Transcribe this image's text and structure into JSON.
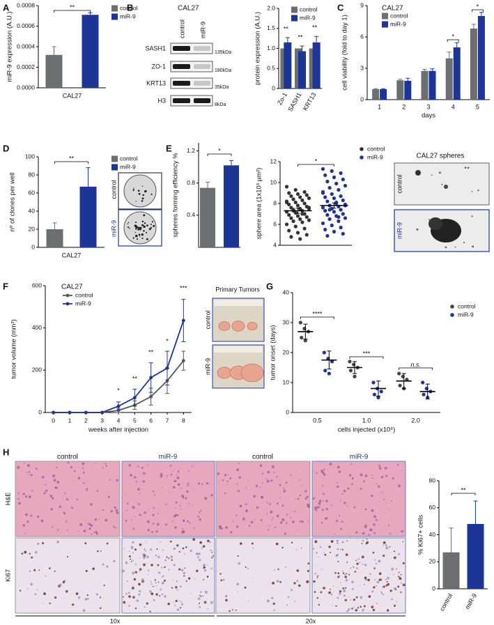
{
  "figure": {
    "panel_letters": [
      "A",
      "B",
      "C",
      "D",
      "E",
      "F",
      "G",
      "H"
    ],
    "blot": {
      "title": "CAL27",
      "lanes": [
        "control",
        "miR-9"
      ],
      "rows": [
        "SASH1",
        "ZO-1",
        "KRT13",
        "H3"
      ],
      "sizes": [
        "135kDa",
        "180kDa",
        "35kDa",
        "8kDa"
      ]
    },
    "clone_images": {
      "labels": [
        "control",
        "miR-9"
      ]
    },
    "sphere_images": {
      "title": "CAL27 spheres",
      "labels": [
        "control",
        "miR-9"
      ]
    },
    "tumor_images": {
      "title": "Primary Tumors",
      "labels": [
        "control",
        "miR-9"
      ]
    },
    "histology": {
      "columns": [
        "control",
        "miR-9",
        "control",
        "miR-9"
      ],
      "rows": [
        "H&E",
        "Ki67"
      ],
      "magnifications": [
        "10x",
        "20x"
      ]
    }
  },
  "chart_data": [
    {
      "type": "bar",
      "y_label": "miR-9 expression (A.U.)",
      "categories": [
        "CAL27"
      ],
      "series": [
        {
          "name": "control",
          "color": "#6d6e70",
          "values": [
            0.00032
          ],
          "errors": [
            8e-05
          ]
        },
        {
          "name": "miR-9",
          "color": "#1c3596",
          "values": [
            0.00071
          ],
          "errors": [
            2e-05
          ]
        }
      ],
      "ylim": [
        0,
        0.0008
      ],
      "yticks": [
        {
          "value": 0,
          "label": "0.0000"
        },
        0.0002,
        0.0004,
        0.0006,
        0.0008
      ],
      "annotations": [
        "**"
      ],
      "legend": "top-right"
    },
    {
      "type": "bar",
      "y_label": "protein expression (A.U.)",
      "categories": [
        "Zo-1",
        "SASH1",
        "KRT13"
      ],
      "series": [
        {
          "name": "control",
          "color": "#6d6e70",
          "values": [
            1,
            1,
            1
          ]
        },
        {
          "name": "miR-9",
          "color": "#1c3596",
          "values": [
            1.15,
            0.93,
            1.15
          ],
          "errors": [
            0.12,
            0.13,
            0.15
          ]
        }
      ],
      "ylim": [
        0,
        2
      ],
      "yticks": [
        0,
        0.5,
        {
          "value": 1,
          "label": "1.0"
        },
        1.5,
        {
          "value": 2,
          "label": "2.0"
        }
      ],
      "annotations": [
        "**",
        "**",
        "**"
      ],
      "legend": "top-right"
    },
    {
      "type": "bar",
      "title": "CAL27",
      "x_label": "days",
      "y_label": "cell viability (fold to day 1)",
      "categories": [
        "1",
        "2",
        "3",
        "4",
        "5"
      ],
      "series": [
        {
          "name": "control",
          "color": "#6d6e70",
          "values": [
            1,
            1.85,
            2.75,
            3.95,
            6.8
          ],
          "errors": [
            0.05,
            0.1,
            0.15,
            0.6,
            0.4
          ]
        },
        {
          "name": "miR-9",
          "color": "#1c3596",
          "values": [
            1,
            1.8,
            2.75,
            5,
            8
          ],
          "errors": [
            0.05,
            0.25,
            0.2,
            0.45,
            0.35
          ]
        }
      ],
      "ylim": [
        0,
        9
      ],
      "yticks": [
        0,
        3,
        6,
        9
      ],
      "annotations": [
        "*",
        "*"
      ],
      "legend": "top-left"
    },
    {
      "type": "bar",
      "y_label": "nº of clones per well",
      "categories": [
        "CAL27"
      ],
      "series": [
        {
          "name": "control",
          "color": "#6d6e70",
          "values": [
            20
          ],
          "errors": [
            7
          ]
        },
        {
          "name": "miR-9",
          "color": "#1c3596",
          "values": [
            67
          ],
          "errors": [
            21
          ]
        }
      ],
      "ylim": [
        0,
        100
      ],
      "yticks": [
        0,
        20,
        40,
        60,
        80,
        100
      ],
      "annotations": [
        "**"
      ],
      "legend": "top-right"
    },
    {
      "type": "bar",
      "y_label": "spheres forming efficiency %",
      "categories": [
        null
      ],
      "series": [
        {
          "color": "#6d6e70",
          "values": [
            0.74
          ],
          "errors": [
            0.07
          ]
        },
        {
          "color": "#1c3596",
          "values": [
            1.02
          ],
          "errors": [
            0.06
          ]
        }
      ],
      "ylim": [
        0,
        1.3
      ],
      "yticks": [
        0.4,
        0.8,
        1.2
      ],
      "annotations": [
        "*"
      ]
    },
    {
      "type": "dot",
      "y_label": "sphere area (1x10³ µm²)",
      "categories": [
        null
      ],
      "series": [
        {
          "name": "control",
          "color": "#333333",
          "values": [
            [
              9.6,
              9.3,
              9.1,
              9.0,
              8.9,
              8.8,
              8.7,
              8.6,
              8.5,
              8.4,
              8.3,
              8.2,
              8.1,
              8.0,
              7.9,
              7.8,
              7.7,
              7.6,
              7.5,
              7.5,
              7.4,
              7.3,
              7.2,
              7.1,
              7.0,
              6.9,
              6.8,
              6.7,
              6.6,
              6.5,
              6.4,
              6.3,
              6.2,
              6.0,
              5.8,
              5.6,
              5.4,
              5.2,
              5.0,
              4.8,
              4.6,
              7.6,
              7.3,
              7.0,
              8.1
            ]
          ],
          "means": [
            7.3
          ],
          "errors": [
            0.25
          ]
        },
        {
          "name": "miR-9",
          "color": "#1c3596",
          "values": [
            [
              11.3,
              11.1,
              10.9,
              10.7,
              10.5,
              10.3,
              10.1,
              9.9,
              9.7,
              9.5,
              9.3,
              9.1,
              8.9,
              8.7,
              8.6,
              8.5,
              8.3,
              8.2,
              8.0,
              7.9,
              7.8,
              7.7,
              7.6,
              7.5,
              7.4,
              7.3,
              7.2,
              7.0,
              6.9,
              6.8,
              6.6,
              6.5,
              6.3,
              6.1,
              5.9,
              5.7,
              5.5,
              5.3,
              5.1,
              4.9,
              8.1,
              7.8,
              7.4,
              6.7,
              9.0
            ]
          ],
          "means": [
            7.8
          ],
          "errors": [
            0.25
          ]
        }
      ],
      "ylim": [
        4,
        12
      ],
      "yticks": [
        4,
        6,
        8,
        10,
        12
      ],
      "annotations": [
        "*"
      ],
      "legend": "top-right"
    },
    {
      "type": "line",
      "title": "CAL27",
      "y_label": "tumor volume (mm³)",
      "x_label": "weeks after injection",
      "x": [
        0,
        1,
        2,
        3,
        4,
        5,
        6,
        7,
        8
      ],
      "xlim": [
        -0.5,
        8.5
      ],
      "xticks": [
        0,
        1,
        2,
        3,
        4,
        5,
        6,
        7,
        8
      ],
      "series": [
        {
          "name": "control",
          "color": "#555555",
          "values": [
            0,
            0,
            0,
            0,
            10,
            35,
            75,
            150,
            245
          ],
          "errors": [
            0,
            0,
            0,
            0,
            10,
            20,
            40,
            60,
            45
          ]
        },
        {
          "name": "miR-9",
          "color": "#1c3596",
          "values": [
            0,
            0,
            0,
            0,
            30,
            70,
            165,
            210,
            435
          ],
          "errors": [
            0,
            0,
            0,
            0,
            20,
            40,
            70,
            80,
            100
          ]
        }
      ],
      "ylim": [
        0,
        600
      ],
      "yticks": [
        0,
        200,
        400,
        600
      ],
      "annotations": [
        "*",
        "**",
        "**",
        "*",
        "***"
      ],
      "legend": "top-left"
    },
    {
      "type": "dot",
      "y_label": "tumor onset (days)",
      "x_label": "cells injected (x10⁶)",
      "categories": [
        "0.5",
        "1.0",
        "2.0"
      ],
      "series": [
        {
          "name": "control",
          "color": "#444444",
          "values": [
            [
              30,
              28,
              27,
              25,
              24
            ],
            [
              17,
              16,
              15,
              14,
              12
            ],
            [
              13,
              12,
              11,
              9,
              8
            ]
          ],
          "means": [
            27,
            15,
            10.5
          ],
          "errors": [
            2.5,
            2,
            2.5
          ]
        },
        {
          "name": "miR-9",
          "color": "#1c3596",
          "values": [
            [
              20,
              18,
              17,
              14,
              13
            ],
            [
              10,
              8,
              7,
              6,
              5
            ],
            [
              10,
              8,
              7,
              6,
              5
            ]
          ],
          "means": [
            17.5,
            8,
            7
          ],
          "errors": [
            3,
            2.5,
            2.5
          ]
        }
      ],
      "ylim": [
        0,
        40
      ],
      "yticks": [
        0,
        10,
        20,
        30,
        40
      ],
      "annotations": [
        "****",
        "***",
        "n.s."
      ],
      "legend": "top-right"
    },
    {
      "type": "bar",
      "y_label": "% Ki67+ cells",
      "categories": [
        "control",
        "miR-9"
      ],
      "series": [
        {
          "colors": [
            "#6d6e70",
            "#1c3596"
          ],
          "values": [
            27,
            48
          ],
          "errors": [
            18,
            17
          ]
        }
      ],
      "ylim": [
        0,
        80
      ],
      "yticks": [
        0,
        20,
        40,
        60,
        80
      ],
      "annotations": [
        "**"
      ]
    }
  ]
}
